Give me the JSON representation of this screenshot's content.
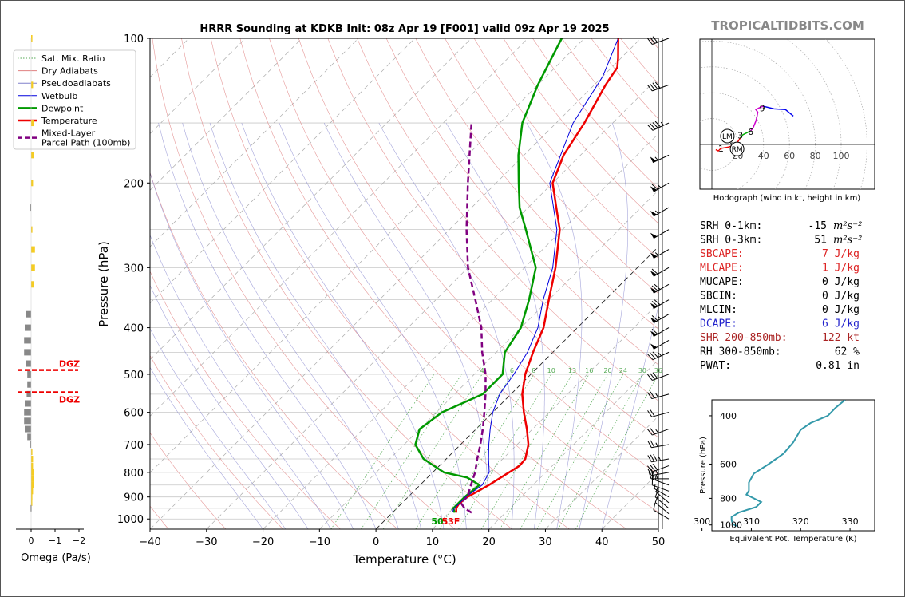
{
  "title": "HRRR Sounding at KDKB Init: 08z Apr 19 [F001] valid 09z Apr 19 2025",
  "watermark": "TROPICALTIDBITS.COM",
  "chart_data": [
    {
      "type": "line",
      "name": "skew-t",
      "xlabel": "Temperature (°C)",
      "ylabel": "Pressure (hPa)",
      "xlim": [
        -40,
        50
      ],
      "ylim": [
        1050,
        100
      ],
      "y_scale": "log",
      "x_ticks": [
        -40,
        -30,
        -20,
        -10,
        0,
        10,
        20,
        30,
        40,
        50
      ],
      "x_tick_labels": [
        "−40",
        "−30",
        "−20",
        "−10",
        "0",
        "10",
        "20",
        "30",
        "40",
        "50"
      ],
      "y_ticks": [
        100,
        200,
        300,
        400,
        500,
        600,
        700,
        800,
        900,
        1000
      ],
      "legend_position": "top-left",
      "legend": [
        "Sat. Mix. Ratio",
        "Dry Adiabats",
        "Pseudoadiabats",
        "Wetbulb",
        "Dewpoint",
        "Temperature",
        "Mixed-Layer\nParcel Path (100mb)"
      ],
      "mixing_ratio_labels": [
        "4",
        "6",
        "8",
        "10",
        "13",
        "16",
        "20",
        "24",
        "30",
        "36"
      ],
      "surface_dewpoint_label": "50",
      "surface_temp_label": "53F",
      "series": [
        {
          "name": "Temperature",
          "color": "#ee0000",
          "points": [
            [
              970,
              11.3
            ],
            [
              950,
              10.5
            ],
            [
              930,
              10.2
            ],
            [
              900,
              10.5
            ],
            [
              870,
              11.5
            ],
            [
              850,
              12.2
            ],
            [
              800,
              13.5
            ],
            [
              775,
              14.2
            ],
            [
              750,
              14.0
            ],
            [
              700,
              12.0
            ],
            [
              650,
              9.0
            ],
            [
              600,
              5.5
            ],
            [
              550,
              2.0
            ],
            [
              500,
              -1.0
            ],
            [
              450,
              -3.5
            ],
            [
              400,
              -6.0
            ],
            [
              350,
              -10.0
            ],
            [
              300,
              -14.5
            ],
            [
              250,
              -20.5
            ],
            [
              225,
              -25.0
            ],
            [
              200,
              -30.0
            ],
            [
              175,
              -33.0
            ],
            [
              150,
              -35.0
            ],
            [
              125,
              -38.0
            ],
            [
              115,
              -39.0
            ],
            [
              110,
              -40.5
            ],
            [
              100,
              -44.0
            ]
          ]
        },
        {
          "name": "Dewpoint",
          "color": "#009900",
          "points": [
            [
              970,
              11.0
            ],
            [
              950,
              10.0
            ],
            [
              900,
              10.0
            ],
            [
              850,
              10.5
            ],
            [
              820,
              7.0
            ],
            [
              800,
              2.0
            ],
            [
              750,
              -4.0
            ],
            [
              700,
              -8.0
            ],
            [
              650,
              -10.0
            ],
            [
              600,
              -9.0
            ],
            [
              550,
              -5.0
            ],
            [
              500,
              -5.0
            ],
            [
              450,
              -8.5
            ],
            [
              400,
              -10.0
            ],
            [
              350,
              -13.5
            ],
            [
              300,
              -18.0
            ],
            [
              250,
              -26.5
            ],
            [
              225,
              -31.5
            ],
            [
              200,
              -36.0
            ],
            [
              175,
              -41.0
            ],
            [
              150,
              -46.0
            ],
            [
              125,
              -50.0
            ],
            [
              100,
              -54.0
            ]
          ]
        },
        {
          "name": "Wetbulb",
          "color": "#0000dd",
          "points": [
            [
              970,
              10.5
            ],
            [
              950,
              10.2
            ],
            [
              900,
              10.2
            ],
            [
              850,
              11.0
            ],
            [
              800,
              10.0
            ],
            [
              750,
              7.5
            ],
            [
              700,
              5.0
            ],
            [
              650,
              2.5
            ],
            [
              600,
              0.0
            ],
            [
              550,
              -2.0
            ],
            [
              500,
              -3.0
            ],
            [
              450,
              -4.5
            ],
            [
              400,
              -7.0
            ],
            [
              350,
              -11.0
            ],
            [
              300,
              -15.0
            ],
            [
              250,
              -21.0
            ],
            [
              200,
              -30.5
            ],
            [
              150,
              -37.0
            ],
            [
              120,
              -40.0
            ],
            [
              100,
              -44.0
            ]
          ]
        },
        {
          "name": "Mixed-Layer Parcel Path (100mb)",
          "color": "#800080",
          "dashed": true,
          "points": [
            [
              970,
              14.0
            ],
            [
              950,
              12.0
            ],
            [
              925,
              10.3
            ],
            [
              900,
              10.5
            ],
            [
              850,
              9.0
            ],
            [
              800,
              7.5
            ],
            [
              750,
              5.5
            ],
            [
              700,
              3.5
            ],
            [
              650,
              1.2
            ],
            [
              600,
              -1.5
            ],
            [
              550,
              -4.5
            ],
            [
              500,
              -8.0
            ],
            [
              450,
              -12.5
            ],
            [
              400,
              -17.0
            ],
            [
              350,
              -23.0
            ],
            [
              300,
              -30.0
            ],
            [
              250,
              -37.0
            ],
            [
              200,
              -45.0
            ],
            [
              150,
              -55.0
            ]
          ]
        }
      ],
      "wind_barbs_knots": [
        {
          "p": 1000,
          "dir": 300,
          "spd": 10
        },
        {
          "p": 975,
          "dir": 310,
          "spd": 10
        },
        {
          "p": 950,
          "dir": 310,
          "spd": 10
        },
        {
          "p": 925,
          "dir": 310,
          "spd": 5
        },
        {
          "p": 900,
          "dir": 300,
          "spd": 5
        },
        {
          "p": 875,
          "dir": 290,
          "spd": 10
        },
        {
          "p": 850,
          "dir": 290,
          "spd": 15
        },
        {
          "p": 825,
          "dir": 270,
          "spd": 25
        },
        {
          "p": 800,
          "dir": 260,
          "spd": 25
        },
        {
          "p": 775,
          "dir": 250,
          "spd": 30
        },
        {
          "p": 750,
          "dir": 260,
          "spd": 35
        },
        {
          "p": 700,
          "dir": 260,
          "spd": 25
        },
        {
          "p": 650,
          "dir": 250,
          "spd": 25
        },
        {
          "p": 600,
          "dir": 255,
          "spd": 20
        },
        {
          "p": 550,
          "dir": 255,
          "spd": 25
        },
        {
          "p": 500,
          "dir": 250,
          "spd": 30
        },
        {
          "p": 450,
          "dir": 245,
          "spd": 35
        },
        {
          "p": 425,
          "dir": 240,
          "spd": 50
        },
        {
          "p": 400,
          "dir": 240,
          "spd": 60
        },
        {
          "p": 375,
          "dir": 240,
          "spd": 65
        },
        {
          "p": 350,
          "dir": 240,
          "spd": 70
        },
        {
          "p": 325,
          "dir": 240,
          "spd": 70
        },
        {
          "p": 300,
          "dir": 240,
          "spd": 60
        },
        {
          "p": 275,
          "dir": 240,
          "spd": 55
        },
        {
          "p": 250,
          "dir": 240,
          "spd": 50
        },
        {
          "p": 225,
          "dir": 240,
          "spd": 55
        },
        {
          "p": 200,
          "dir": 240,
          "spd": 65
        },
        {
          "p": 175,
          "dir": 245,
          "spd": 55
        },
        {
          "p": 150,
          "dir": 245,
          "spd": 45
        },
        {
          "p": 125,
          "dir": 250,
          "spd": 40
        },
        {
          "p": 100,
          "dir": 250,
          "spd": 30
        }
      ]
    },
    {
      "type": "bar",
      "name": "omega-profile",
      "xlabel": "Omega (Pa/s)",
      "x_ticks": [
        "0",
        "−1",
        "−2"
      ],
      "dgz_label": "DGZ",
      "dgz_levels": [
        490,
        545
      ],
      "bars": [
        {
          "p": 100,
          "v": -0.1
        },
        {
          "p": 125,
          "v": -0.15
        },
        {
          "p": 150,
          "v": -0.2
        },
        {
          "p": 175,
          "v": -0.25
        },
        {
          "p": 200,
          "v": -0.15
        },
        {
          "p": 225,
          "v": 0.1
        },
        {
          "p": 250,
          "v": -0.1
        },
        {
          "p": 275,
          "v": -0.3
        },
        {
          "p": 300,
          "v": -0.3
        },
        {
          "p": 325,
          "v": -0.25
        },
        {
          "p": 375,
          "v": 0.4
        },
        {
          "p": 400,
          "v": 0.5
        },
        {
          "p": 425,
          "v": 0.55
        },
        {
          "p": 450,
          "v": 0.55
        },
        {
          "p": 475,
          "v": 0.4
        },
        {
          "p": 500,
          "v": 0.3
        },
        {
          "p": 525,
          "v": 0.3
        },
        {
          "p": 550,
          "v": 0.35
        },
        {
          "p": 575,
          "v": 0.5
        },
        {
          "p": 600,
          "v": 0.55
        },
        {
          "p": 625,
          "v": 0.55
        },
        {
          "p": 650,
          "v": 0.5
        },
        {
          "p": 675,
          "v": 0.3
        },
        {
          "p": 700,
          "v": 0.1
        },
        {
          "p": 725,
          "v": -0.1
        },
        {
          "p": 750,
          "v": -0.15
        },
        {
          "p": 775,
          "v": -0.15
        },
        {
          "p": 800,
          "v": -0.2
        },
        {
          "p": 825,
          "v": -0.2
        },
        {
          "p": 850,
          "v": -0.2
        },
        {
          "p": 875,
          "v": -0.15
        },
        {
          "p": 900,
          "v": -0.1
        },
        {
          "p": 925,
          "v": -0.05
        },
        {
          "p": 950,
          "v": 0.05
        }
      ]
    },
    {
      "type": "line",
      "name": "hodograph",
      "caption": "Hodograph (wind in kt, height in km)",
      "ring_labels": [
        "20",
        "40",
        "60",
        "80",
        "100"
      ],
      "storm_motion_labels": [
        "LM",
        "RM"
      ],
      "height_labels": [
        {
          "km": "1",
          "u": 7,
          "v": -3
        },
        {
          "km": "2",
          "u": 16,
          "v": -1
        },
        {
          "km": "3",
          "u": 22,
          "v": 7
        },
        {
          "km": "6",
          "u": 30,
          "v": 10
        },
        {
          "km": "9",
          "u": 39,
          "v": 28
        }
      ],
      "left_mover": [
        12,
        6.5
      ],
      "right_mover": [
        19.5,
        -3.5
      ],
      "segments": [
        {
          "color": "#ee0000",
          "points": [
            [
              3,
              -4
            ],
            [
              5,
              -5
            ],
            [
              7,
              -3
            ],
            [
              10,
              -2.5
            ],
            [
              13,
              -2
            ],
            [
              16,
              -1
            ],
            [
              18,
              0.5
            ],
            [
              20,
              2
            ],
            [
              22,
              5
            ]
          ]
        },
        {
          "color": "#00aa00",
          "points": [
            [
              22,
              5
            ],
            [
              24,
              7.5
            ],
            [
              27,
              9
            ],
            [
              30,
              10.5
            ]
          ]
        },
        {
          "color": "#cc00cc",
          "points": [
            [
              30,
              10.5
            ],
            [
              32,
              13
            ],
            [
              34,
              18
            ],
            [
              35,
              22
            ],
            [
              35.5,
              25
            ],
            [
              34,
              27
            ],
            [
              38,
              29
            ],
            [
              40,
              29.5
            ]
          ]
        },
        {
          "color": "#0000ee",
          "points": [
            [
              40,
              29.5
            ],
            [
              48,
              27.5
            ],
            [
              57,
              27
            ],
            [
              63,
              22
            ]
          ]
        }
      ]
    },
    {
      "type": "line",
      "name": "theta-e-profile",
      "xlabel": "Equivalent Pot. Temperature (K)",
      "ylabel": "Pressure (hPa)",
      "xlim": [
        302,
        335
      ],
      "ylim": [
        1050,
        350
      ],
      "x_ticks": [
        300,
        310,
        320,
        330
      ],
      "y_ticks": [
        400,
        600,
        800,
        1000
      ],
      "color": "#3399aa",
      "points": [
        [
          350,
          329
        ],
        [
          375,
          327
        ],
        [
          400,
          325.5
        ],
        [
          425,
          322
        ],
        [
          450,
          320
        ],
        [
          500,
          318.5
        ],
        [
          550,
          316.5
        ],
        [
          600,
          313.5
        ],
        [
          650,
          310.5
        ],
        [
          700,
          309.5
        ],
        [
          750,
          309.5
        ],
        [
          775,
          309
        ],
        [
          800,
          310.5
        ],
        [
          825,
          312
        ],
        [
          860,
          311
        ],
        [
          900,
          307.5
        ],
        [
          935,
          306
        ],
        [
          960,
          306
        ],
        [
          990,
          306.2
        ],
        [
          1010,
          307
        ]
      ]
    }
  ],
  "parameters": [
    {
      "label": "SRH 0-1km:",
      "value": "-15",
      "unit": "m²s⁻²",
      "color": "#000000"
    },
    {
      "label": "SRH 0-3km:",
      "value": "51",
      "unit": "m²s⁻²",
      "color": "#000000"
    },
    {
      "label": "SBCAPE:",
      "value": "7 J/kg",
      "unit": "",
      "color": "#dd2222"
    },
    {
      "label": "MLCAPE:",
      "value": "1 J/kg",
      "unit": "",
      "color": "#dd2222"
    },
    {
      "label": "MUCAPE:",
      "value": "0 J/kg",
      "unit": "",
      "color": "#000000"
    },
    {
      "label": "SBCIN:",
      "value": "0 J/kg",
      "unit": "",
      "color": "#000000"
    },
    {
      "label": "MLCIN:",
      "value": "0 J/kg",
      "unit": "",
      "color": "#000000"
    },
    {
      "label": "DCAPE:",
      "value": "6 J/kg",
      "unit": "",
      "color": "#2222cc"
    },
    {
      "label": "SHR 200-850mb:",
      "value": "122 kt",
      "unit": "",
      "color": "#aa2222"
    },
    {
      "label": "RH 300-850mb:",
      "value": "62 %",
      "unit": "",
      "color": "#000000"
    },
    {
      "label": "PWAT:",
      "value": "0.81 in",
      "unit": "",
      "color": "#000000"
    }
  ]
}
